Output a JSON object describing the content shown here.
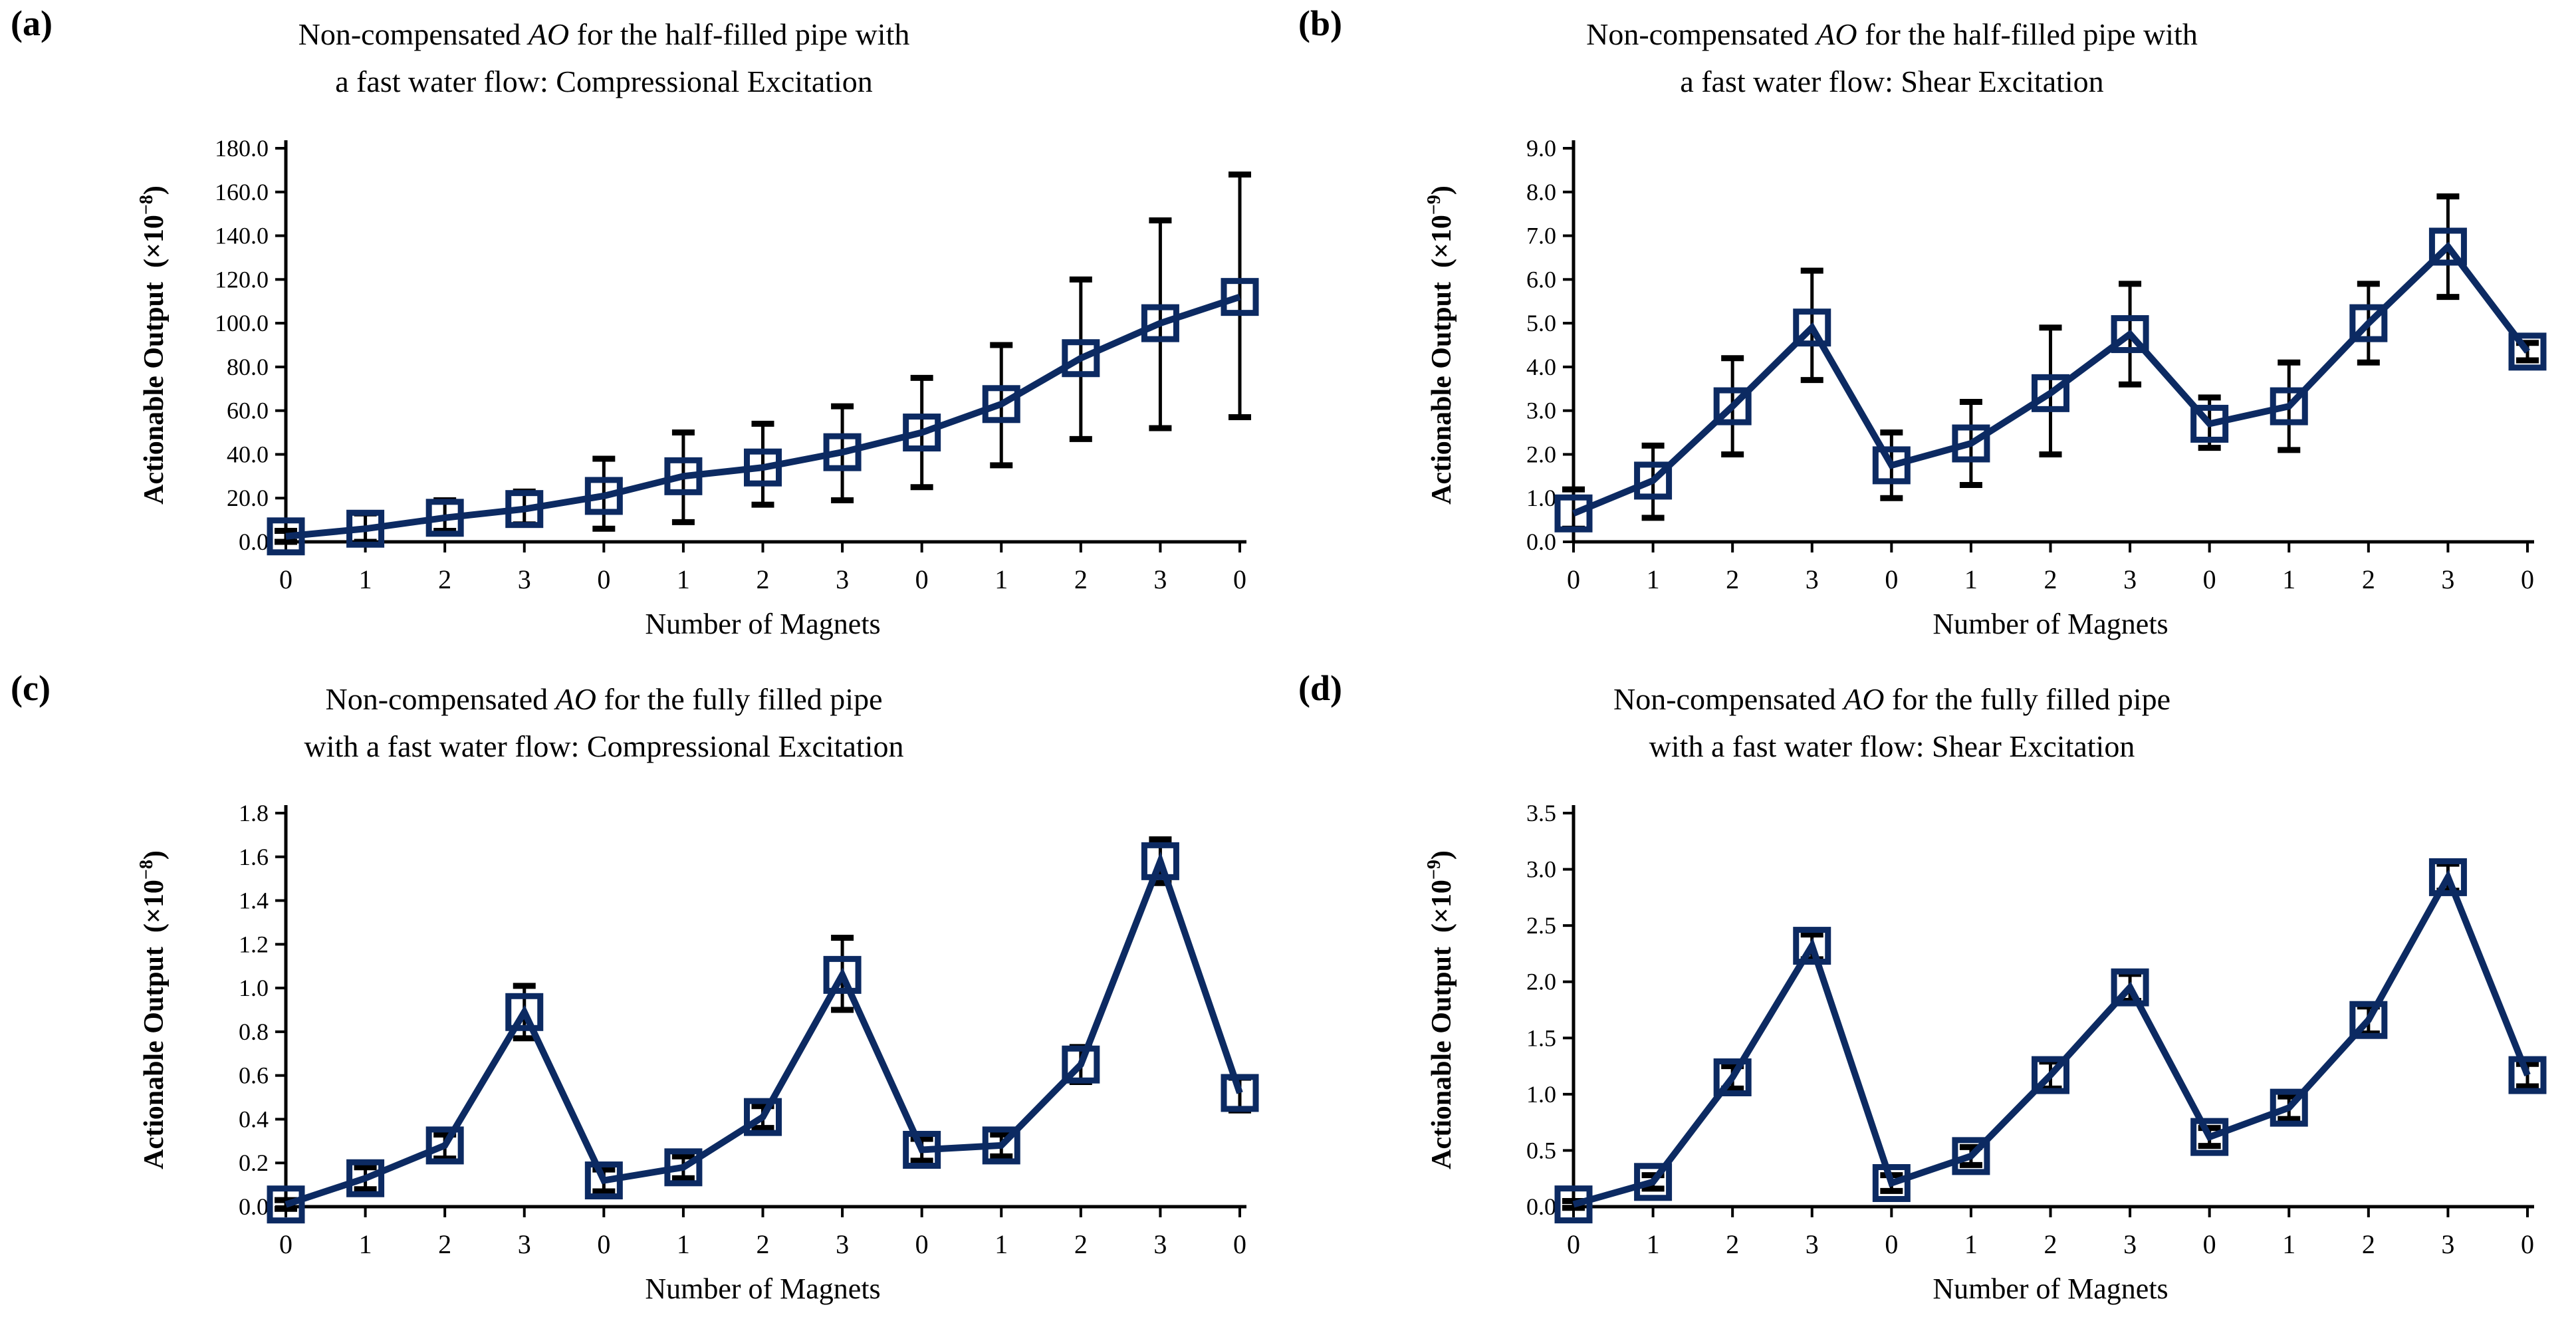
{
  "figure": {
    "panels": [
      {
        "corner_label": "(a)",
        "title_pre": "Non-compensated ",
        "title_italic": "AO",
        "title_post": " for the half-filled pipe with",
        "title_line2": "a fast water flow: Compressional Excitation"
      },
      {
        "corner_label": "(b)",
        "title_pre": "Non-compensated ",
        "title_italic": "AO",
        "title_post": " for the half-filled pipe with",
        "title_line2": "a fast water flow: Shear Excitation"
      },
      {
        "corner_label": "(c)",
        "title_pre": "Non-compensated ",
        "title_italic": "AO",
        "title_post": " for the fully filled pipe",
        "title_line2": "with a fast water flow: Compressional Excitation"
      },
      {
        "corner_label": "(d)",
        "title_pre": "Non-compensated ",
        "title_italic": "AO",
        "title_post": " for the fully filled pipe",
        "title_line2": "with a fast water flow: Shear Excitation"
      }
    ]
  },
  "colors": {
    "line": "#0c2a62",
    "error_bar": "#000000",
    "axis": "#000000",
    "background": "#ffffff"
  },
  "chart_data": [
    {
      "type": "line",
      "panel": "(a)",
      "title": "Non-compensated AO for the half-filled pipe with a fast water flow: Compressional Excitation",
      "xlabel": "Number of Magnets",
      "ylabel": "Actionable Output",
      "y_unit_prefix": "(×10",
      "y_unit_exponent": "−8",
      "y_unit_suffix": ")",
      "categories": [
        "0",
        "1",
        "2",
        "3",
        "0",
        "1",
        "2",
        "3",
        "0",
        "1",
        "2",
        "3",
        "0"
      ],
      "values": [
        2.5,
        6,
        11,
        15,
        21,
        30,
        34,
        41,
        50,
        63,
        84,
        100,
        112
      ],
      "err_minus": [
        2.5,
        6,
        6,
        7,
        15,
        21,
        17,
        22,
        25,
        28,
        37,
        48,
        55
      ],
      "err_plus": [
        2.5,
        7,
        8,
        8,
        17,
        20,
        20,
        21,
        25,
        27,
        36,
        47,
        56
      ],
      "ylim": [
        0,
        180
      ],
      "ytick_step": 20,
      "ytick_decimals": 1,
      "grid": false,
      "legend": "none",
      "marker": "open-square"
    },
    {
      "type": "line",
      "panel": "(b)",
      "title": "Non-compensated AO for the half-filled pipe with a fast water flow: Shear Excitation",
      "xlabel": "Number of Magnets",
      "ylabel": "Actionable Output",
      "y_unit_prefix": "(×10",
      "y_unit_exponent": "−9",
      "y_unit_suffix": ")",
      "categories": [
        "0",
        "1",
        "2",
        "3",
        "0",
        "1",
        "2",
        "3",
        "0",
        "1",
        "2",
        "3",
        "0"
      ],
      "values": [
        0.65,
        1.4,
        3.1,
        4.9,
        1.75,
        2.25,
        3.4,
        4.75,
        2.7,
        3.1,
        5.0,
        6.75,
        4.35
      ],
      "err_minus": [
        0.35,
        0.85,
        1.1,
        1.2,
        0.75,
        0.95,
        1.4,
        1.15,
        0.55,
        1.0,
        0.9,
        1.15,
        0.2
      ],
      "err_plus": [
        0.55,
        0.8,
        1.1,
        1.3,
        0.75,
        0.95,
        1.5,
        1.15,
        0.6,
        1.0,
        0.9,
        1.15,
        0.2
      ],
      "ylim": [
        0,
        9
      ],
      "ytick_step": 1,
      "ytick_decimals": 1,
      "grid": false,
      "legend": "none",
      "marker": "open-square"
    },
    {
      "type": "line",
      "panel": "(c)",
      "title": "Non-compensated AO for the fully filled pipe with a fast water flow: Compressional Excitation",
      "xlabel": "Number of Magnets",
      "ylabel": "Actionable Output",
      "y_unit_prefix": "(×10",
      "y_unit_exponent": "−8",
      "y_unit_suffix": ")",
      "categories": [
        "0",
        "1",
        "2",
        "3",
        "0",
        "1",
        "2",
        "3",
        "0",
        "1",
        "2",
        "3",
        "0"
      ],
      "values": [
        0.01,
        0.13,
        0.28,
        0.89,
        0.12,
        0.18,
        0.41,
        1.06,
        0.26,
        0.28,
        0.65,
        1.58,
        0.52
      ],
      "err_minus": [
        0.02,
        0.05,
        0.06,
        0.12,
        0.05,
        0.05,
        0.05,
        0.16,
        0.05,
        0.05,
        0.08,
        0.1,
        0.08
      ],
      "err_plus": [
        0.02,
        0.05,
        0.05,
        0.12,
        0.05,
        0.05,
        0.05,
        0.17,
        0.05,
        0.05,
        0.08,
        0.1,
        0.07
      ],
      "ylim": [
        0,
        1.8
      ],
      "ytick_step": 0.2,
      "ytick_decimals": 1,
      "grid": false,
      "legend": "none",
      "marker": "open-square"
    },
    {
      "type": "line",
      "panel": "(d)",
      "title": "Non-compensated AO for the fully filled pipe with a fast water flow: Shear Excitation",
      "xlabel": "Number of Magnets",
      "ylabel": "Actionable Output",
      "y_unit_prefix": "(×10",
      "y_unit_exponent": "−9",
      "y_unit_suffix": ")",
      "categories": [
        "0",
        "1",
        "2",
        "3",
        "0",
        "1",
        "2",
        "3",
        "0",
        "1",
        "2",
        "3",
        "0"
      ],
      "values": [
        0.02,
        0.22,
        1.15,
        2.32,
        0.21,
        0.45,
        1.17,
        1.95,
        0.62,
        0.88,
        1.66,
        2.93,
        1.17
      ],
      "err_minus": [
        0.03,
        0.06,
        0.1,
        0.12,
        0.07,
        0.08,
        0.12,
        0.12,
        0.08,
        0.1,
        0.12,
        0.12,
        0.1
      ],
      "err_plus": [
        0.03,
        0.06,
        0.1,
        0.1,
        0.07,
        0.08,
        0.12,
        0.12,
        0.08,
        0.1,
        0.12,
        0.12,
        0.1
      ],
      "ylim": [
        0,
        3.5
      ],
      "ytick_step": 0.5,
      "ytick_decimals": 1,
      "grid": false,
      "legend": "none",
      "marker": "open-square"
    }
  ]
}
